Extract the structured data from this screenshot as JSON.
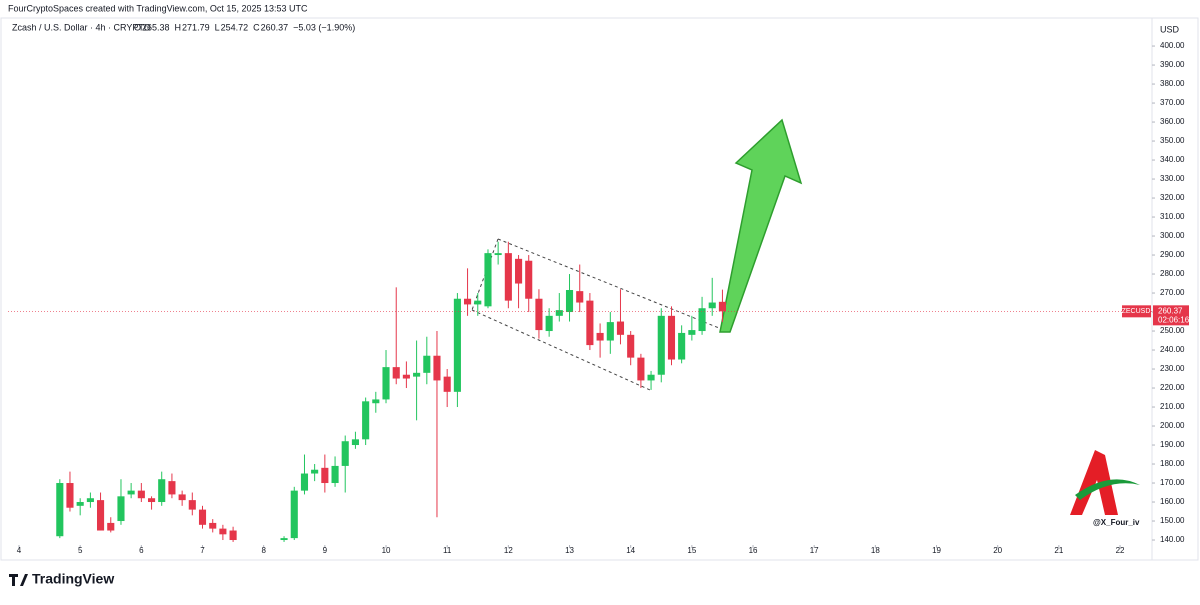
{
  "header": {
    "credit": "FourCryptoSpaces created with TradingView.com, Oct 15, 2025 13:53 UTC",
    "symbol": "Zcash / U.S. Dollar · 4h · CRYPTO",
    "open_label": "O",
    "open": "265.38",
    "high_label": "H",
    "high": "271.79",
    "low_label": "L",
    "low": "254.72",
    "close_label": "C",
    "close": "260.37",
    "change": "−5.03 (−1.90%)"
  },
  "currency": "USD",
  "last_price": {
    "symbol": "ZECUSD",
    "price": "260.37",
    "countdown": "02:06:16"
  },
  "watermark": "@X_Four_iv",
  "footer": "TradingView",
  "chart_data": {
    "type": "candlestick",
    "up_color": "#22c55e",
    "down_color": "#e5364a",
    "x": [
      4.667,
      4.833,
      5.0,
      5.167,
      5.333,
      5.5,
      5.667,
      5.833,
      6.0,
      6.167,
      6.333,
      6.5,
      6.667,
      6.833,
      7.0,
      7.167,
      7.333,
      7.5,
      8.333,
      8.5,
      8.667,
      8.833,
      9.0,
      9.167,
      9.333,
      9.5,
      9.667,
      9.833,
      10.0,
      10.167,
      10.333,
      10.5,
      10.667,
      10.833,
      11.0,
      11.167,
      11.333,
      11.5,
      11.667,
      11.833,
      12.0,
      12.167,
      12.333,
      12.5,
      12.667,
      12.833,
      13.0,
      13.167,
      13.333,
      13.5,
      13.667,
      13.833,
      14.0,
      14.167,
      14.333,
      14.5,
      14.667,
      14.833,
      15.0,
      15.167,
      15.333,
      15.5
    ],
    "open": [
      142,
      170,
      158,
      160,
      161,
      149,
      150,
      164,
      166,
      162,
      160,
      171,
      164,
      161,
      156,
      149,
      146,
      145,
      140,
      141,
      166,
      175,
      178,
      170,
      179,
      190,
      193,
      212,
      214,
      231,
      227,
      226,
      228,
      237,
      226,
      218,
      267,
      264,
      263,
      290,
      291,
      288,
      287,
      267,
      250,
      258,
      260,
      271,
      266,
      249,
      245,
      255,
      248,
      236,
      224,
      227,
      258,
      235,
      248,
      250,
      262,
      265.38
    ],
    "high": [
      172,
      176,
      162,
      165,
      165,
      152,
      172,
      170,
      170,
      163,
      176,
      175,
      166,
      165,
      158,
      151,
      148,
      147,
      142,
      168,
      185,
      180,
      185,
      184,
      195,
      197,
      215,
      218,
      240,
      273,
      234,
      245,
      247,
      250,
      230,
      270,
      283,
      270,
      293,
      297,
      297,
      290,
      290,
      272,
      262,
      270,
      280,
      285,
      270,
      254,
      260,
      272,
      250,
      238,
      229,
      262,
      263,
      253,
      258,
      268,
      278,
      271.79
    ],
    "low": [
      141,
      155,
      153,
      157,
      145,
      144,
      148,
      162,
      160,
      156,
      158,
      162,
      158,
      153,
      146,
      144,
      140,
      139,
      139,
      140,
      164,
      171,
      165,
      168,
      165,
      188,
      190,
      207,
      212,
      222,
      220,
      203,
      222,
      152,
      210,
      210,
      258,
      258,
      262,
      285,
      262,
      262,
      260,
      246,
      247,
      255,
      255,
      260,
      240,
      236,
      238,
      243,
      232,
      220,
      219,
      223,
      232,
      233,
      245,
      248,
      258,
      254.72
    ],
    "close": [
      170,
      157,
      160,
      162,
      145,
      145,
      163,
      166,
      162,
      160,
      172,
      164,
      161,
      156,
      148,
      146,
      143,
      140,
      141,
      166,
      175,
      177,
      170,
      179,
      192,
      193,
      213,
      214,
      231,
      225,
      225,
      228,
      237,
      224,
      218,
      267,
      264,
      266,
      291,
      291,
      266,
      275,
      267,
      250.5,
      258,
      261,
      271.6,
      265,
      242.6,
      245,
      254.7,
      248,
      236,
      224,
      227,
      258,
      235,
      249,
      250.5,
      262,
      265,
      260.37
    ],
    "xlim": [
      3.82,
      22.49
    ],
    "xticks": [
      4,
      5,
      6,
      7,
      8,
      9,
      10,
      11,
      12,
      13,
      14,
      15,
      16,
      17,
      18,
      19,
      20,
      21,
      22
    ],
    "ylim": [
      135.8,
      409.5
    ],
    "yticks": [
      {
        "value": 140,
        "label": "140.00"
      },
      {
        "value": 150,
        "label": "150.00"
      },
      {
        "value": 160,
        "label": "160.00"
      },
      {
        "value": 170,
        "label": "170.00"
      },
      {
        "value": 180,
        "label": "180.00"
      },
      {
        "value": 190,
        "label": "190.00"
      },
      {
        "value": 200,
        "label": "200.00"
      },
      {
        "value": 210,
        "label": "210.00"
      },
      {
        "value": 220,
        "label": "220.00"
      },
      {
        "value": 230,
        "label": "230.00"
      },
      {
        "value": 240,
        "label": "240.00"
      },
      {
        "value": 250,
        "label": "250.00"
      },
      {
        "value": 260,
        "label": "260.00"
      },
      {
        "value": 270,
        "label": "270.00"
      },
      {
        "value": 280,
        "label": "280.00"
      },
      {
        "value": 290,
        "label": "290.00"
      },
      {
        "value": 300,
        "label": "300.00"
      },
      {
        "value": 310,
        "label": "310.00"
      },
      {
        "value": 320,
        "label": "320.00"
      },
      {
        "value": 330,
        "label": "330.00"
      },
      {
        "value": 340,
        "label": "340.00"
      },
      {
        "value": 350,
        "label": "350.00"
      },
      {
        "value": 360,
        "label": "360.00"
      },
      {
        "value": 370,
        "label": "370.00"
      },
      {
        "value": 380,
        "label": "380.00"
      },
      {
        "value": 390,
        "label": "390.00"
      },
      {
        "value": 400,
        "label": "400.00"
      }
    ]
  }
}
